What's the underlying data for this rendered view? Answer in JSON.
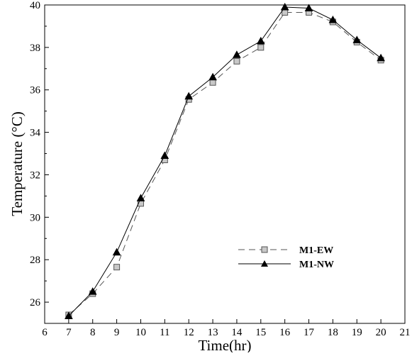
{
  "chart_data": {
    "type": "line",
    "xlabel": "Time(hr)",
    "ylabel": "Temperature (°C)",
    "xlim": [
      6,
      21
    ],
    "ylim": [
      25,
      40
    ],
    "xticks": [
      6,
      7,
      8,
      9,
      10,
      11,
      12,
      13,
      14,
      15,
      16,
      17,
      18,
      19,
      20,
      21
    ],
    "yticks": [
      26,
      28,
      30,
      32,
      34,
      36,
      38,
      40
    ],
    "legend_position": "lower-right",
    "grid": false,
    "x": [
      7,
      8,
      9,
      10,
      11,
      12,
      13,
      14,
      15,
      16,
      17,
      18,
      19,
      20
    ],
    "series": [
      {
        "name": "M1-EW",
        "style": "dashed",
        "marker": "square",
        "color": "#555555",
        "marker_fill": "#c8c8c8",
        "values": [
          25.4,
          26.4,
          27.65,
          30.65,
          32.7,
          35.55,
          36.35,
          37.35,
          38.0,
          39.65,
          39.65,
          39.2,
          38.25,
          37.4
        ]
      },
      {
        "name": "M1-NW",
        "style": "solid",
        "marker": "triangle",
        "color": "#000000",
        "marker_fill": "#000000",
        "values": [
          25.35,
          26.5,
          28.35,
          30.9,
          32.9,
          35.7,
          36.6,
          37.65,
          38.3,
          39.9,
          39.85,
          39.3,
          38.35,
          37.5
        ]
      }
    ]
  }
}
